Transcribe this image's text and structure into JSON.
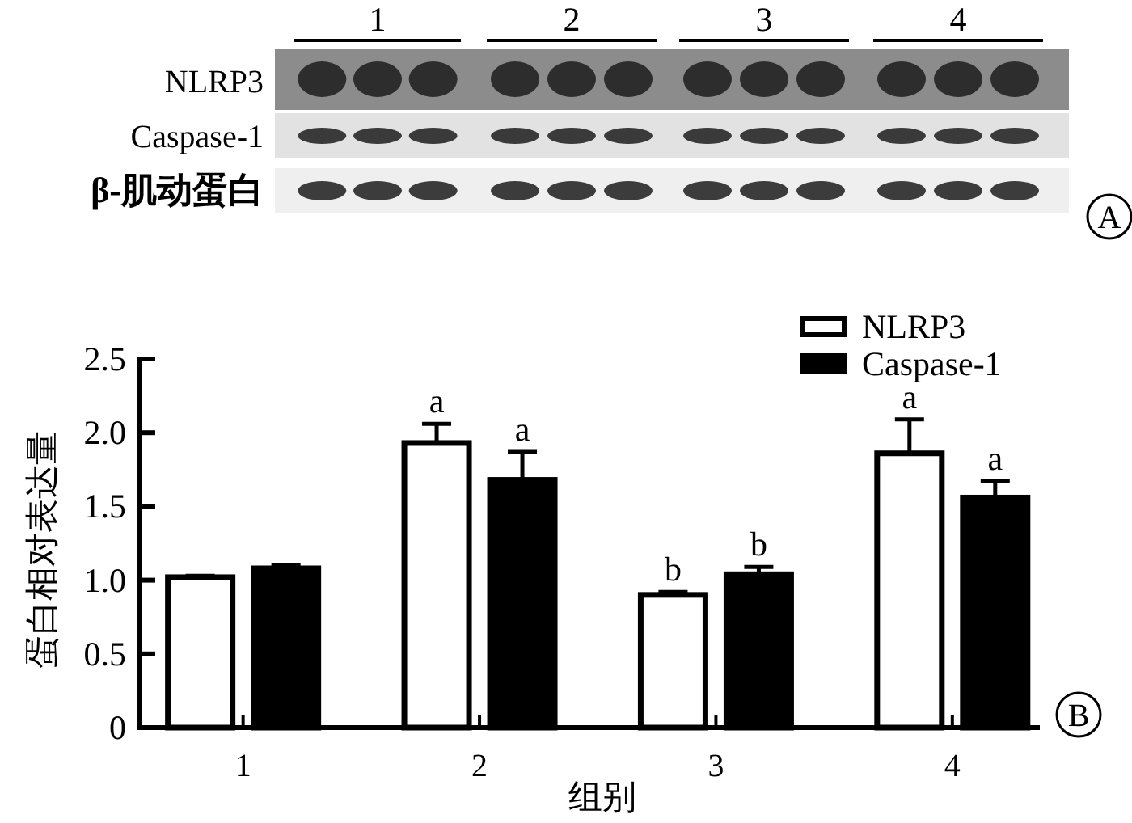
{
  "chart_data": {
    "type": "bar",
    "xlabel": "组别",
    "ylabel": "蛋白相对表达量",
    "categories": [
      "1",
      "2",
      "3",
      "4"
    ],
    "series": [
      {
        "name": "NLRP3",
        "color": "#ffffff",
        "values": [
          1.02,
          1.93,
          0.9,
          1.86
        ],
        "errors": [
          0.01,
          0.13,
          0.02,
          0.23
        ]
      },
      {
        "name": "Caspase-1",
        "color": "#000000",
        "values": [
          1.08,
          1.68,
          1.04,
          1.56
        ],
        "errors": [
          0.02,
          0.19,
          0.05,
          0.11
        ]
      }
    ],
    "ylim": [
      0,
      2.5
    ],
    "yticks": [
      0,
      0.5,
      {
        "value": 1,
        "label": "1.0"
      },
      1.5,
      {
        "value": 2,
        "label": "2.0"
      },
      2.5
    ],
    "legend": "top right",
    "annotations": [
      "1",
      "2",
      "3",
      "4",
      "NLRP3",
      "Caspase-1",
      "β-肌动蛋白",
      "A",
      "B",
      "a",
      "a",
      "b",
      "b",
      "a",
      "a"
    ]
  }
}
